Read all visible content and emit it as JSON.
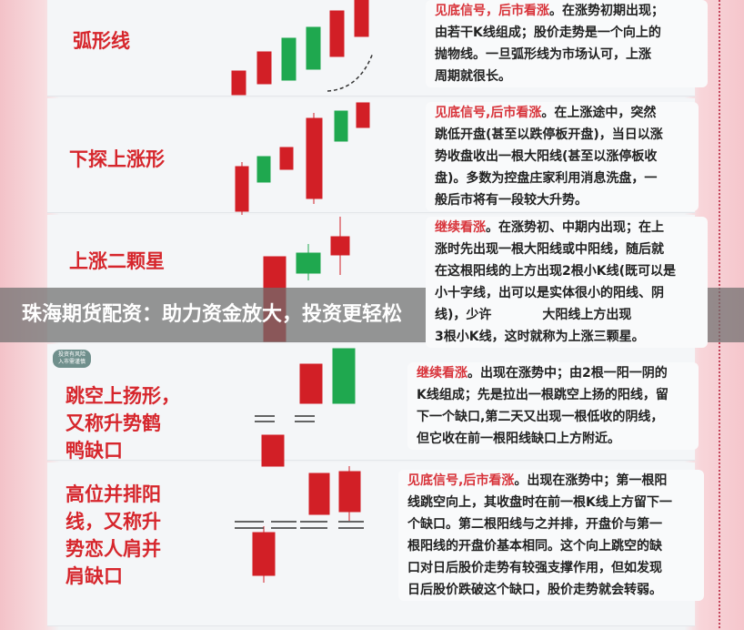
{
  "banner": "珠海期货配资：助力资金放大，投资更轻松",
  "tag": [
    "投资有风险",
    "入市需谨慎"
  ],
  "colors": {
    "bull": "#d21f26",
    "bear": "#1fa84f",
    "label": "#d6262c"
  },
  "rows": [
    {
      "label": [
        "弧形线"
      ],
      "lines": [
        [
          "见底信号，后市看涨",
          "。在涨势初期出现；"
        ],
        [
          "",
          "由若干K线组成；股价走势是一个向上的"
        ],
        [
          "",
          "抛物线。一旦弧形线为市场认可，上涨"
        ],
        [
          "",
          "周期就很长。"
        ]
      ]
    },
    {
      "label": [
        "下探上涨形"
      ],
      "lines": [
        [
          "见底信号,后市看涨",
          "。在上涨途中，突然"
        ],
        [
          "",
          "跳低开盘(甚至以跌停板开盘)，当日以涨"
        ],
        [
          "",
          "势收盘收出一根大阳线(甚至以涨停板收"
        ],
        [
          "",
          "盘)。多数为控盘庄家利用消息洗盘，一"
        ],
        [
          "",
          "般后市将有一段较大升势。"
        ]
      ]
    },
    {
      "label": [
        "上涨二颗星"
      ],
      "lines": [
        [
          "继续看涨",
          "。在涨势初、中期内出现；在上"
        ],
        [
          "",
          "涨时先出现一根大阳线或中阳线，随后就"
        ],
        [
          "",
          "在这根阳线的上方出现2根小K线(既可以是"
        ],
        [
          "",
          "小十字线，出可以是实体很小的阳线、阴"
        ],
        [
          "",
          "线)，少许　　　　大阳线上方出现"
        ],
        [
          "",
          "3根小K线，这时就称为上涨三颗星。"
        ]
      ]
    },
    {
      "label": [
        "跳空上扬形，",
        "又称升势鹤",
        "鸭缺口"
      ],
      "lines": [
        [
          "继续看涨",
          "。出现在涨势中；由2根一阳一阴的"
        ],
        [
          "",
          "K线组成；先是拉出一根跳空上扬的阳线，留"
        ],
        [
          "",
          "下一个缺口,第二天又出现一根低收的阴线，"
        ],
        [
          "",
          "但它收在前一根阳线缺口上方附近。"
        ]
      ]
    },
    {
      "label": [
        "高位并排阳",
        "线，又称升",
        "势恋人肩并",
        "肩缺口"
      ],
      "lines": [
        [
          "见底信号,后市看涨",
          "。出现在涨势中；第一根阳"
        ],
        [
          "",
          "线跳空向上，其收盘时在前一根K线上方留下一"
        ],
        [
          "",
          "个缺口。第二根阳线与之并排，开盘价与第一"
        ],
        [
          "",
          "根阳线的开盘价基本相同。这个向上跳空的缺"
        ],
        [
          "",
          "口对日后股价走势有较强支撑作用，但如发现"
        ],
        [
          "",
          "日后股价跌破这个缺口，股价走势就会转弱。"
        ]
      ]
    }
  ]
}
